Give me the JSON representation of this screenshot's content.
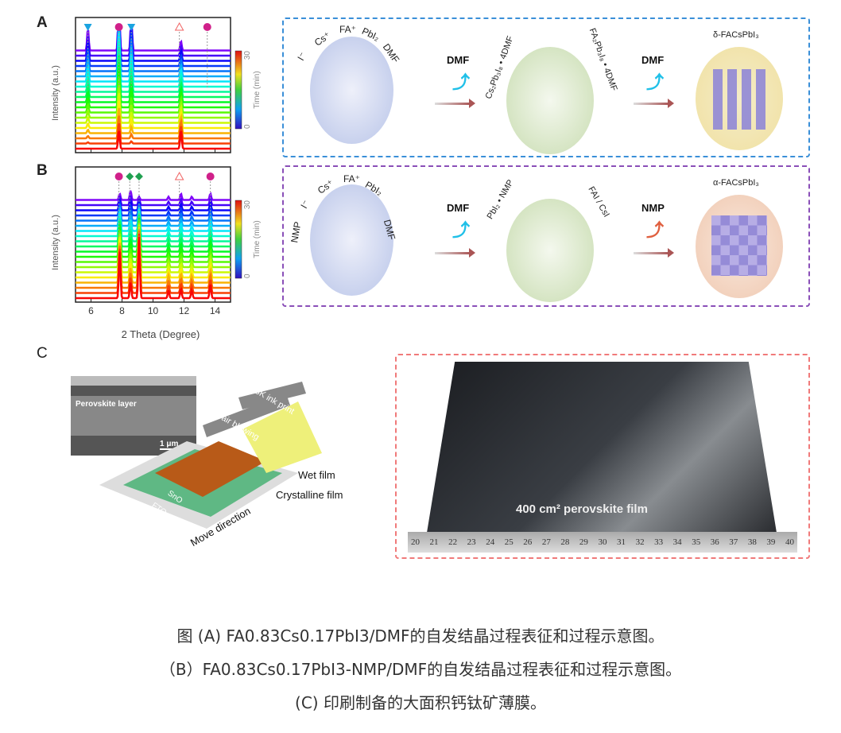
{
  "panels": {
    "a": "A",
    "b": "B",
    "c": "C"
  },
  "chart_data": [
    {
      "type": "line",
      "panel": "A",
      "title": "",
      "xlabel": "2 Theta (Degree)",
      "ylabel": "Intensity (a.u.)",
      "xlim": [
        5,
        15
      ],
      "xticks": [
        6,
        8,
        10,
        12,
        14
      ],
      "colorbar": {
        "label": "Time (min)",
        "range": [
          0,
          30
        ],
        "ticks": [
          "0",
          "30"
        ]
      },
      "series_count": 20,
      "peaks": [
        {
          "x": 5.8,
          "early": 0.7,
          "late": 0
        },
        {
          "x": 7.8,
          "early": 2.2,
          "late": 0.6
        },
        {
          "x": 8.6,
          "early": 1.3,
          "late": 0
        },
        {
          "x": 11.8,
          "early": 0.3,
          "late": 0.6
        }
      ],
      "markers": [
        {
          "x": 5.8,
          "shape": "triangle-down",
          "color": "#1aa3e0"
        },
        {
          "x": 7.8,
          "shape": "circle",
          "color": "#d0208a"
        },
        {
          "x": 8.6,
          "shape": "triangle-down",
          "color": "#1aa3e0"
        },
        {
          "x": 11.7,
          "shape": "open-triangle",
          "color": "#f06060"
        },
        {
          "x": 13.5,
          "shape": "circle",
          "color": "#d0208a"
        }
      ]
    },
    {
      "type": "line",
      "panel": "B",
      "title": "",
      "xlabel": "2 Theta (Degree)",
      "ylabel": "Intensity (a.u.)",
      "xlim": [
        5,
        15
      ],
      "xticks": [
        6,
        8,
        10,
        12,
        14
      ],
      "colorbar": {
        "label": "Time (min)",
        "range": [
          0,
          30
        ],
        "ticks": [
          "0",
          "30"
        ]
      },
      "series_count": 20,
      "peaks": [
        {
          "x": 7.85,
          "early": 0.2,
          "late": 1.6
        },
        {
          "x": 8.55,
          "early": 0.3,
          "late": 0.5
        },
        {
          "x": 9.1,
          "early": 0.1,
          "late": 2.0
        },
        {
          "x": 11.0,
          "early": 0.1,
          "late": 0.25
        },
        {
          "x": 11.8,
          "early": 0.2,
          "late": 0.3
        },
        {
          "x": 12.5,
          "early": 0.1,
          "late": 0.25
        },
        {
          "x": 13.7,
          "early": 0.2,
          "late": 0.45
        }
      ],
      "markers": [
        {
          "x": 7.8,
          "shape": "circle",
          "color": "#d0208a"
        },
        {
          "x": 8.5,
          "shape": "diamond",
          "color": "#20a050"
        },
        {
          "x": 9.1,
          "shape": "diamond",
          "color": "#20a050"
        },
        {
          "x": 11.7,
          "shape": "open-triangle",
          "color": "#f06060"
        },
        {
          "x": 13.7,
          "shape": "circle",
          "color": "#d0208a"
        }
      ]
    }
  ],
  "schemeA": {
    "ions": [
      "I⁻",
      "Cs⁺",
      "FA⁺",
      "PbI₂",
      "DMF"
    ],
    "mid_left": "Cs₂Pb₃I₈ • 4DMF",
    "mid_right": "FA₂Pb₃I₈ • 4DMF",
    "solvent1": "DMF",
    "solvent2": "DMF",
    "product": "δ-FACsPbI₃",
    "border": "#3a8fd8"
  },
  "schemeB": {
    "ions": [
      "NMP",
      "I⁻",
      "Cs⁺",
      "FA⁺",
      "PbI₂",
      "DMF"
    ],
    "mid_left": "PbI₂ • NMP",
    "mid_right": "FAI / CsI",
    "solvent1": "DMF",
    "solvent2": "NMP",
    "product": "α-FACsPbI₃",
    "border": "#8a4fb8"
  },
  "panelC": {
    "sem_label": "Perovskite layer",
    "scale_bar": "1 μm",
    "printer": "PVSK ink print",
    "blower": "Dry air blowing",
    "wet": "Wet film",
    "crystalline": "Crystalline film",
    "move": "Move direction",
    "layers": [
      "SnO",
      "FTO",
      "Glass"
    ],
    "photo_label": "400 cm² perovskite film",
    "ruler": [
      "20",
      "21",
      "22",
      "23",
      "24",
      "25",
      "26",
      "27",
      "28",
      "29",
      "30",
      "31",
      "32",
      "33",
      "34",
      "35",
      "36",
      "37",
      "38",
      "39",
      "40"
    ],
    "border": "#f07a7a"
  },
  "caption": [
    "图 (A) FA0.83Cs0.17PbI3/DMF的自发结晶过程表征和过程示意图。",
    "（B）FA0.83Cs0.17PbI3-NMP/DMF的自发结晶过程表征和过程示意图。",
    "(C) 印刷制备的大面积钙钛矿薄膜。"
  ]
}
